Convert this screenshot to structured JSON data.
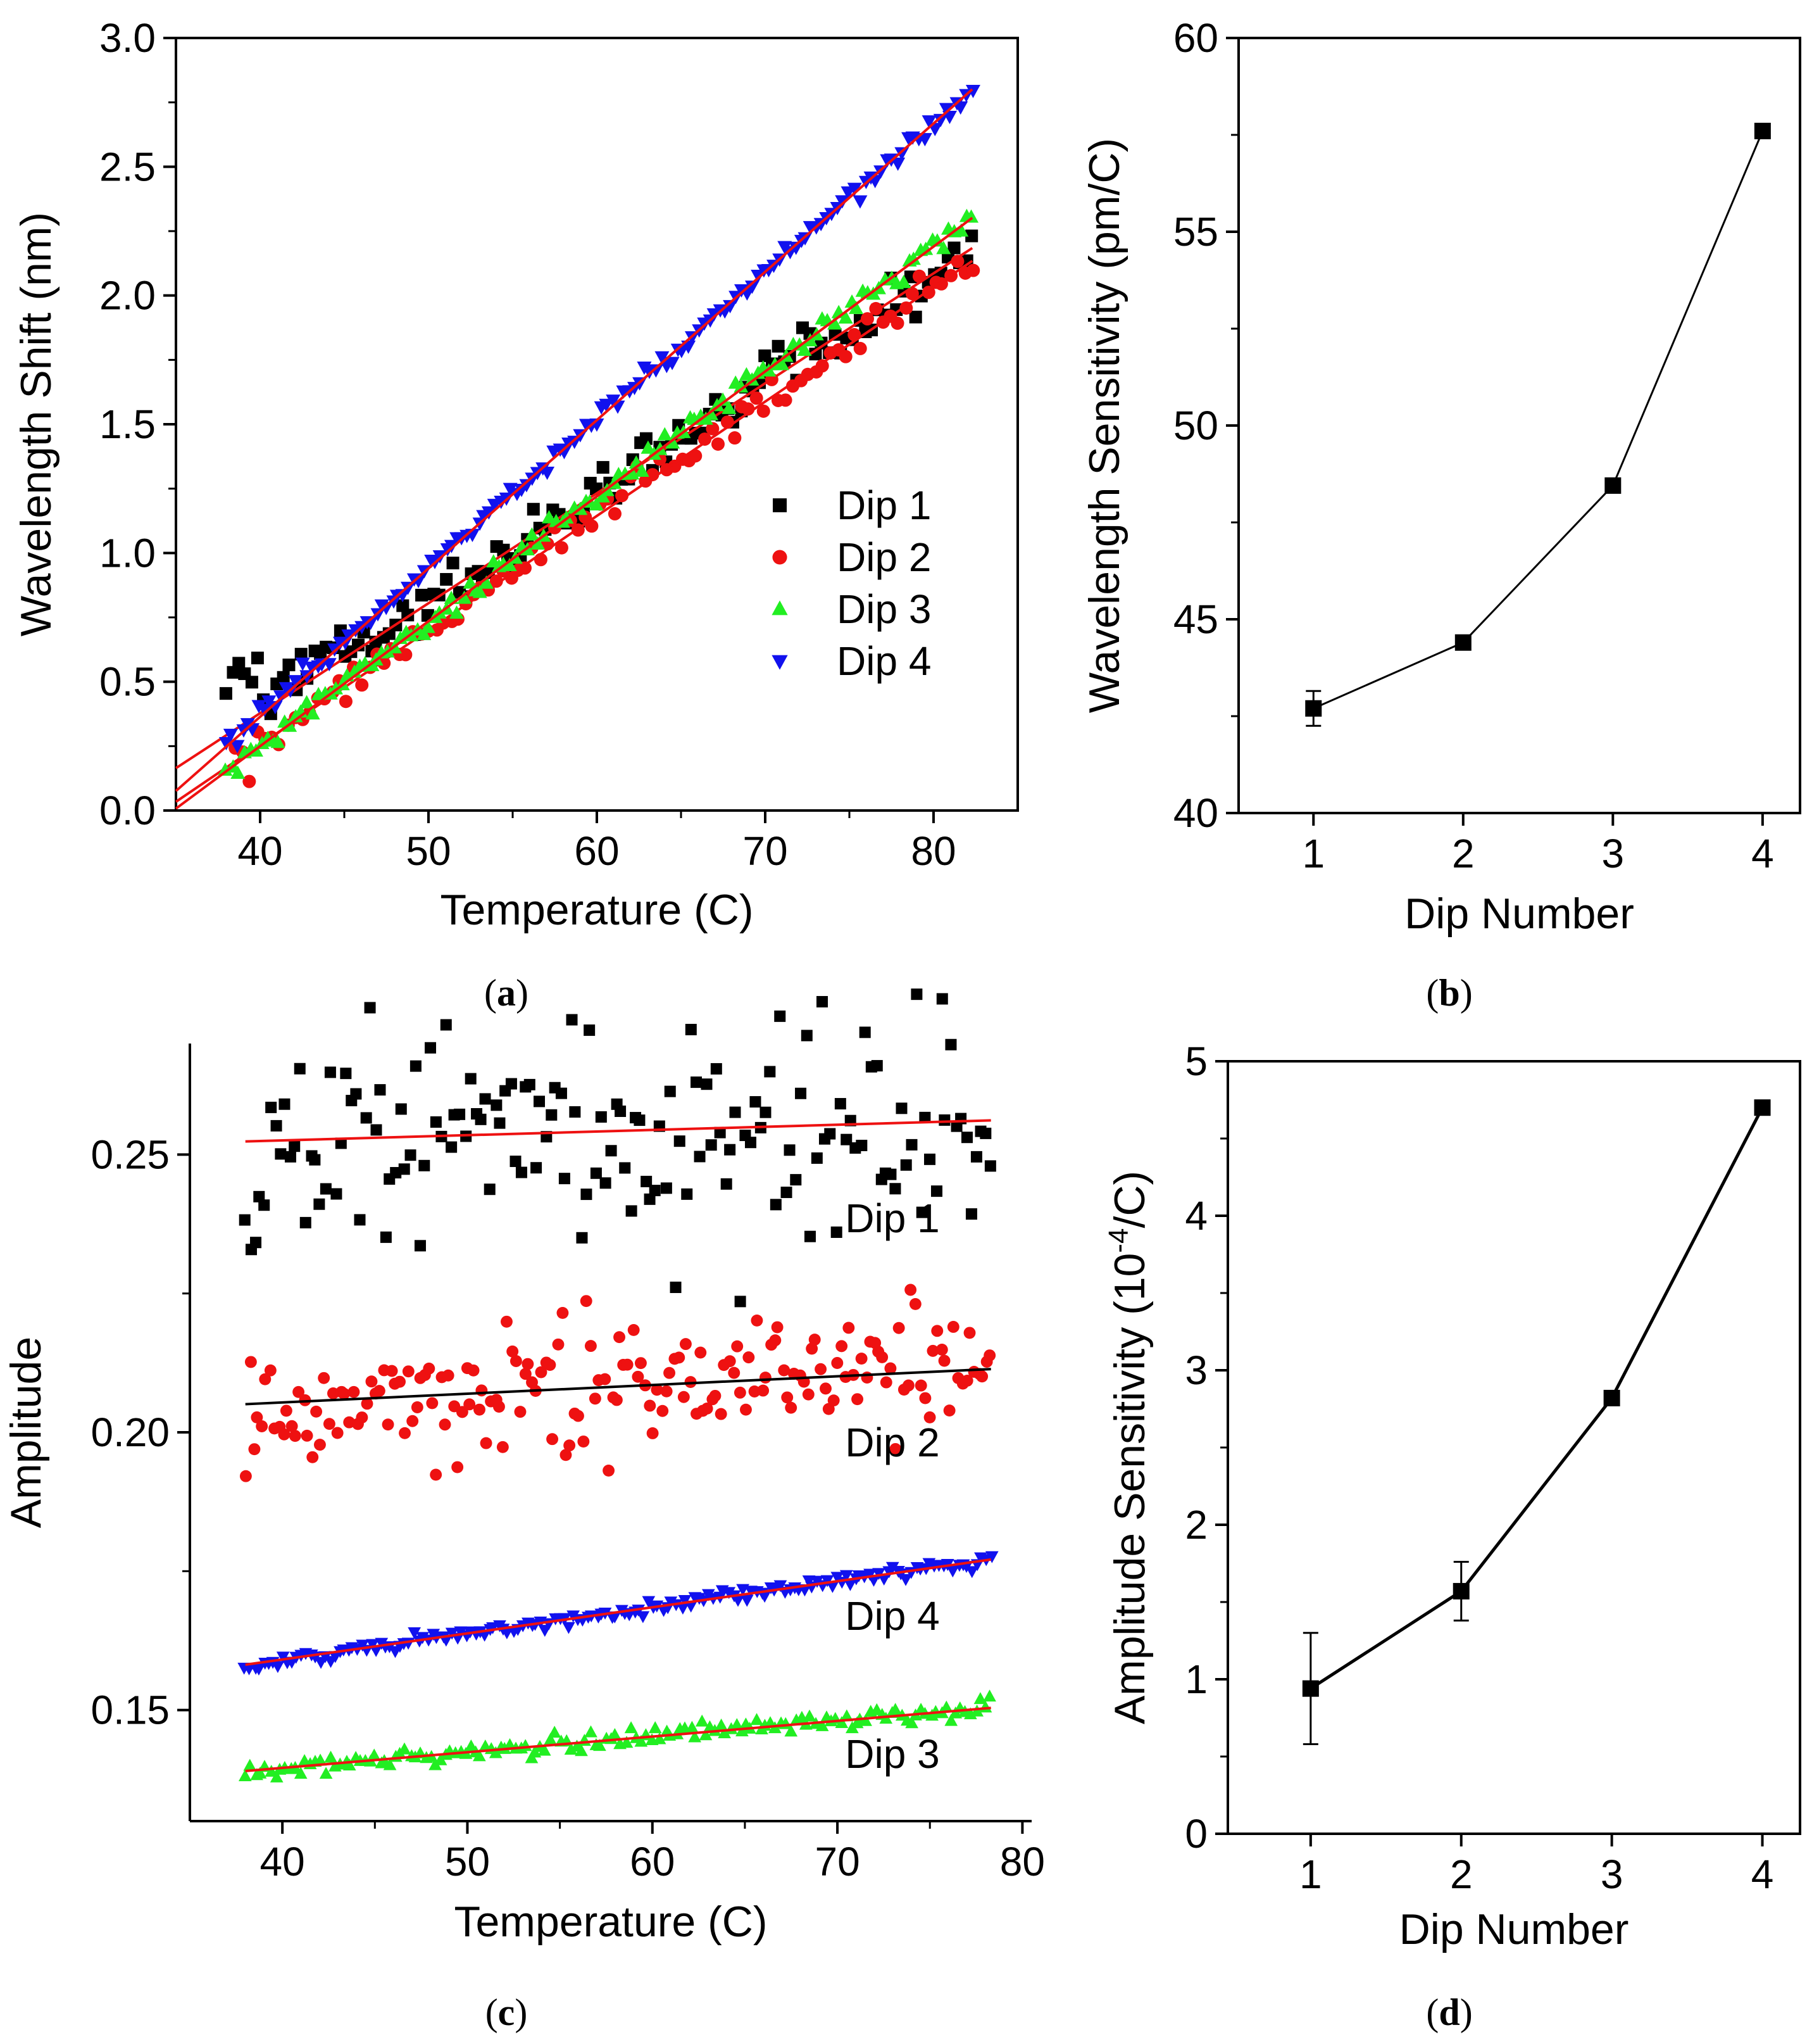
{
  "panel_labels": [
    "a",
    "b",
    "c",
    "d"
  ],
  "colors": {
    "dip1": "#000000",
    "dip2": "#ee1111",
    "dip3": "#22ee22",
    "dip4": "#1111ee",
    "fit": "#ee1111",
    "fit_alt": "#000000"
  },
  "chart_data": [
    {
      "id": "a",
      "type": "scatter",
      "xlabel": "Temperature (C)",
      "ylabel": "Wavelength Shift (nm)",
      "xlim": [
        35,
        85
      ],
      "ylim": [
        0,
        3
      ],
      "xticks": [
        "40",
        "50",
        "60",
        "70",
        "80"
      ],
      "yticks": [
        "0.0",
        "0.5",
        "1.0",
        "1.5",
        "2.0",
        "2.5",
        "3.0"
      ],
      "series": [
        {
          "name": "Dip 1",
          "marker": "square",
          "color": "#000000",
          "x_start": 38,
          "x_end": 82.3,
          "n": 120,
          "fit": {
            "slope": 0.0427,
            "intercept": -1.33
          },
          "scatter": 0.05,
          "bulge_low": true
        },
        {
          "name": "Dip 2",
          "marker": "circle",
          "color": "#ee1111",
          "x_start": 38.5,
          "x_end": 82.3,
          "n": 100,
          "fit": {
            "slope": 0.0444,
            "intercept": -1.52
          },
          "scatter": 0.035
        },
        {
          "name": "Dip 3",
          "marker": "triangle-up",
          "color": "#22ee22",
          "x_start": 38,
          "x_end": 82.3,
          "n": 130,
          "fit": {
            "slope": 0.0485,
            "intercept": -1.69
          },
          "scatter": 0.02
        },
        {
          "name": "Dip 4",
          "marker": "triangle-down",
          "color": "#1111ee",
          "x_start": 38,
          "x_end": 82.3,
          "n": 140,
          "fit": {
            "slope": 0.0576,
            "intercept": -1.94
          },
          "scatter": 0.018
        }
      ],
      "legend": "center-right"
    },
    {
      "id": "b",
      "type": "line",
      "xlabel": "Dip Number",
      "ylabel": "Wavelength Sensitivity (pm/C)",
      "xlim": [
        0.5,
        4.25
      ],
      "ylim": [
        40,
        60
      ],
      "xticks": [
        "1",
        "2",
        "3",
        "4"
      ],
      "yticks": [
        "40",
        "45",
        "50",
        "55",
        "60"
      ],
      "x": [
        1,
        2,
        3,
        4
      ],
      "y": [
        42.7,
        44.4,
        48.45,
        57.6
      ],
      "error": [
        0.45,
        0.1,
        0.1,
        0.1
      ]
    },
    {
      "id": "c",
      "type": "scatter",
      "xlabel": "Temperature (C)",
      "ylabel": "Amplitude",
      "xlim": [
        35,
        80.5
      ],
      "ylim": [
        0.13,
        0.27
      ],
      "xticks": [
        "40",
        "50",
        "60",
        "70",
        "80"
      ],
      "yticks": [
        "0.15",
        "0.20",
        "0.25"
      ],
      "series": [
        {
          "name": "Dip 1",
          "marker": "square",
          "color": "#000000",
          "fit_color": "#ee1111",
          "x_start": 38,
          "x_end": 78.3,
          "n": 150,
          "fit": {
            "slope": 9.4e-05,
            "intercept": 0.2488
          },
          "scatter": 0.011
        },
        {
          "name": "Dip 2",
          "marker": "circle",
          "color": "#ee1111",
          "fit_color": "#000000",
          "x_start": 38,
          "x_end": 78.3,
          "n": 180,
          "fit": {
            "slope": 0.000157,
            "intercept": 0.1991
          },
          "scatter": 0.0055
        },
        {
          "name": "Dip 4",
          "marker": "triangle-down",
          "color": "#1111ee",
          "fit_color": "#ee1111",
          "x_start": 38,
          "x_end": 78.3,
          "n": 160,
          "fit": {
            "slope": 0.00047,
            "intercept": 0.1403
          },
          "scatter": 0.0006
        },
        {
          "name": "Dip 3",
          "marker": "triangle-up",
          "color": "#22ee22",
          "fit_color": "#ee1111",
          "x_start": 38,
          "x_end": 78.3,
          "n": 150,
          "fit": {
            "slope": 0.000282,
            "intercept": 0.1283
          },
          "scatter": 0.0008
        }
      ],
      "series_labels": "beside each series, right side"
    },
    {
      "id": "d",
      "type": "line",
      "xlabel": "Dip Number",
      "ylabel_main": "Amplitude Sensitivity (10",
      "ylabel_exp": "-4",
      "ylabel_tail": "/C)",
      "xlim": [
        0.45,
        4.25
      ],
      "ylim": [
        0,
        5
      ],
      "xticks": [
        "1",
        "2",
        "3",
        "4"
      ],
      "yticks": [
        "0",
        "1",
        "2",
        "3",
        "4",
        "5"
      ],
      "x": [
        1,
        2,
        3,
        4
      ],
      "y": [
        0.94,
        1.57,
        2.82,
        4.7
      ],
      "error": [
        0.36,
        0.19,
        0.03,
        0.02
      ]
    }
  ]
}
